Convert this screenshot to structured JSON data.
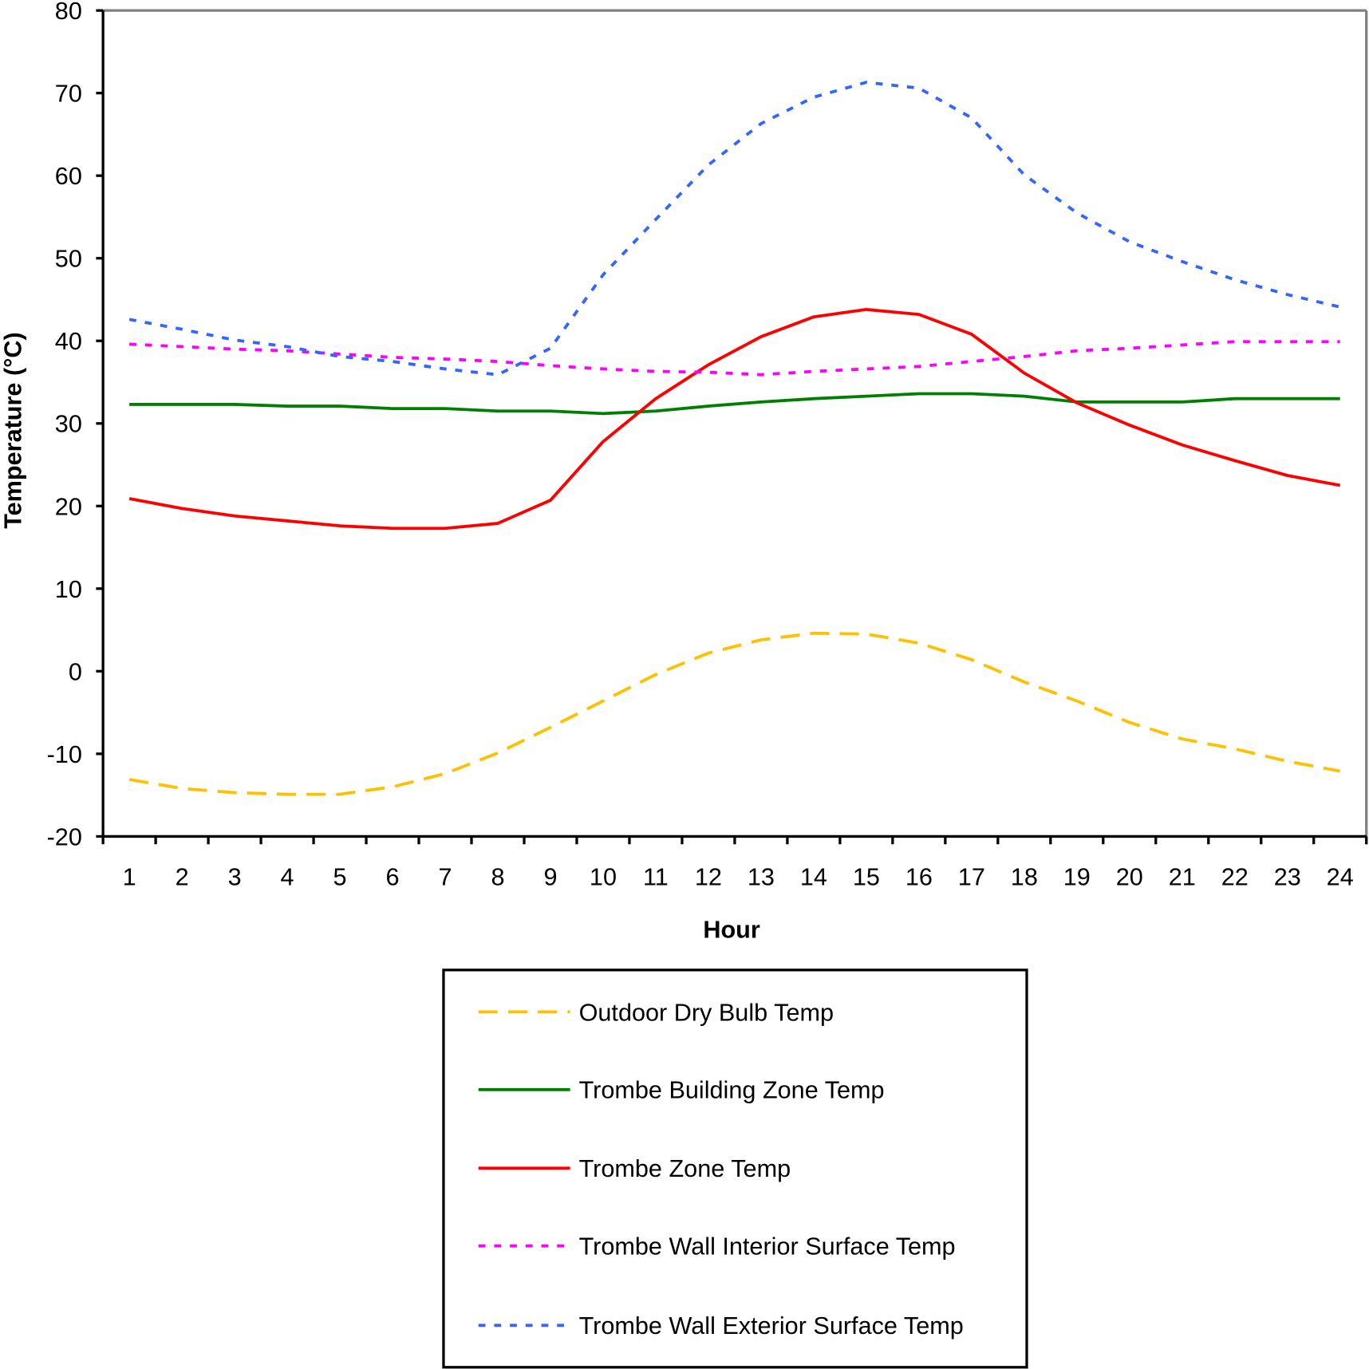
{
  "chart_data": {
    "type": "line",
    "title": "",
    "xlabel": "Hour",
    "ylabel": "Temperature (°C)",
    "ylim": [
      -20,
      80
    ],
    "yticks": [
      -20,
      -10,
      0,
      10,
      20,
      30,
      40,
      50,
      60,
      70,
      80
    ],
    "categories": [
      "1",
      "2",
      "3",
      "4",
      "5",
      "6",
      "7",
      "8",
      "9",
      "10",
      "11",
      "12",
      "13",
      "14",
      "15",
      "16",
      "17",
      "18",
      "19",
      "20",
      "21",
      "22",
      "23",
      "24"
    ],
    "grid": false,
    "legend_position": "bottom",
    "series": [
      {
        "name": "Outdoor Dry Bulb Temp",
        "color": "#FFC000",
        "dash": "dashed",
        "values": [
          -13.1,
          -14.2,
          -14.7,
          -14.9,
          -14.9,
          -14.0,
          -12.4,
          -9.9,
          -6.8,
          -3.6,
          -0.4,
          2.2,
          3.8,
          4.6,
          4.5,
          3.4,
          1.4,
          -1.3,
          -3.6,
          -6.2,
          -8.2,
          -9.4,
          -10.9,
          -12.1
        ]
      },
      {
        "name": "Trombe Building Zone Temp",
        "color": "#008000",
        "dash": "solid",
        "values": [
          32.3,
          32.3,
          32.3,
          32.1,
          32.1,
          31.8,
          31.8,
          31.5,
          31.5,
          31.2,
          31.5,
          32.1,
          32.6,
          33.0,
          33.3,
          33.6,
          33.6,
          33.3,
          32.6,
          32.6,
          32.6,
          33.0,
          33.0,
          33.0
        ]
      },
      {
        "name": "Trombe Zone Temp",
        "color": "#FF0000",
        "dash": "solid",
        "values": [
          20.9,
          19.7,
          18.8,
          18.2,
          17.6,
          17.3,
          17.3,
          17.9,
          20.7,
          27.8,
          33.0,
          37.1,
          40.5,
          42.9,
          43.8,
          43.2,
          40.8,
          36.1,
          32.5,
          29.8,
          27.4,
          25.5,
          23.7,
          22.5
        ]
      },
      {
        "name": "Trombe Wall Interior Surface Temp",
        "color": "#FF00FF",
        "dash": "dotted",
        "values": [
          39.6,
          39.3,
          39.0,
          38.8,
          38.4,
          38.0,
          37.8,
          37.5,
          37.0,
          36.6,
          36.3,
          36.2,
          35.9,
          36.3,
          36.6,
          36.9,
          37.5,
          38.1,
          38.8,
          39.1,
          39.5,
          39.9,
          39.9,
          39.9
        ]
      },
      {
        "name": "Trombe Wall Exterior Surface Temp",
        "color": "#3366FF",
        "dash": "dotted",
        "values": [
          42.6,
          41.4,
          40.1,
          39.3,
          38.1,
          37.5,
          36.6,
          35.9,
          39.1,
          48.0,
          54.7,
          61.3,
          66.3,
          69.5,
          71.3,
          70.6,
          67.0,
          60.1,
          55.5,
          52.0,
          49.6,
          47.4,
          45.6,
          44.1
        ]
      }
    ]
  }
}
